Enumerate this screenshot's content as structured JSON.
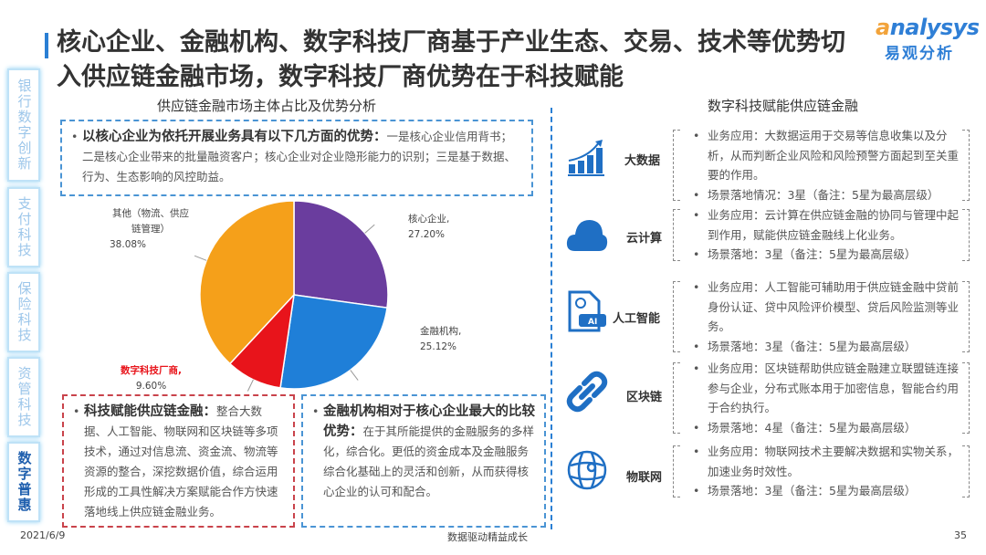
{
  "title": "核心企业、金融机构、数字科技厂商基于产业生态、交易、技术等优势切入供应链金融市场，数字科技厂商优势在于科技赋能",
  "logo": {
    "en_prefix": "a",
    "en_rest": "nalysys",
    "cn": "易观分析"
  },
  "sidebar": {
    "items": [
      {
        "label": "银行数字创新"
      },
      {
        "label": "支付科技"
      },
      {
        "label": "保险科技"
      },
      {
        "label": "资管科技"
      },
      {
        "label": "数字普惠",
        "active": true
      }
    ]
  },
  "left": {
    "heading": "供应链金融市场主体占比及优势分析",
    "top_box": {
      "bold": "以核心企业为依托开展业务具有以下几方面的优势：",
      "text": "一是核心企业信用背书；二是核心企业带来的批量融资客户；核心企业对企业隐形能力的识别；三是基于数据、行为、生态影响的风控助益。"
    },
    "red_box": {
      "bold": "科技赋能供应链金融：",
      "text": "整合大数据、人工智能、物联网和区块链等多项技术，通过对信息流、资金流、物流等资源的整合，深挖数据价值，综合运用形成的工具性解决方案赋能合作方快速落地线上供应链金融业务。"
    },
    "blue_box": {
      "bold": "金融机构相对于核心企业最大的比较优势：",
      "text": "在于其所能提供的金融服务的多样化，综合化。更低的资金成本及金融服务综合化基础上的灵活和创新，从而获得核心企业的认可和配合。"
    }
  },
  "chart_data": {
    "type": "pie",
    "start": "12 o'clock, clockwise",
    "slices": [
      {
        "name": "核心企业,",
        "label": "27.20%",
        "value": 27.2,
        "color": "#6a3d9e"
      },
      {
        "name": "金融机构,",
        "label": "25.12%",
        "value": 25.12,
        "color": "#1f7fd8"
      },
      {
        "name": "数字科技厂商,",
        "label": "9.60%",
        "value": 9.6,
        "color": "#e8141b",
        "highlight": true
      },
      {
        "name": "其他（物流、供应链管理）",
        "label": "38.08%",
        "value": 38.08,
        "color": "#f5a01a"
      }
    ]
  },
  "right": {
    "heading": "数字科技赋能供应链金融",
    "rows": [
      {
        "icon": "bar-chart-growth-icon",
        "label": "大数据",
        "app": "业务应用：大数据运用于交易等信息收集以及分析，从而判断企业风险和风险预警方面起到至关重要的作用。",
        "land": "场景落地情况：3星（备注：5星为最高层级）",
        "stars": 3
      },
      {
        "icon": "cloud-icon",
        "label": "云计算",
        "app": "业务应用：云计算在供应链金融的协同与管理中起到作用，赋能供应链金融线上化业务。",
        "land": "场景落地：3星（备注：5星为最高层级）",
        "stars": 3
      },
      {
        "icon": "ai-document-icon",
        "label": "人工智能",
        "app": "业务应用：人工智能可辅助用于供应链金融中贷前身份认证、贷中风险评价模型、贷后风险监测等业务。",
        "land": "场景落地：3星（备注：5星为最高层级）",
        "stars": 3
      },
      {
        "icon": "chain-link-icon",
        "label": "区块链",
        "app": "业务应用：区块链帮助供应链金融建立联盟链连接参与企业，分布式账本用于加密信息，智能合约用于合约执行。",
        "land": "场景落地：4星（备注：5星为最高层级）",
        "stars": 4
      },
      {
        "icon": "globe-network-icon",
        "label": "物联网",
        "app": "业务应用：物联网技术主要解决数据和实物关系，加速业务时效性。",
        "land": "场景落地：3星（备注：5星为最高层级）",
        "stars": 3
      }
    ]
  },
  "footer": {
    "date": "2021/6/9",
    "slogan": "数据驱动精益成长",
    "page": "35"
  },
  "bullet": "•"
}
